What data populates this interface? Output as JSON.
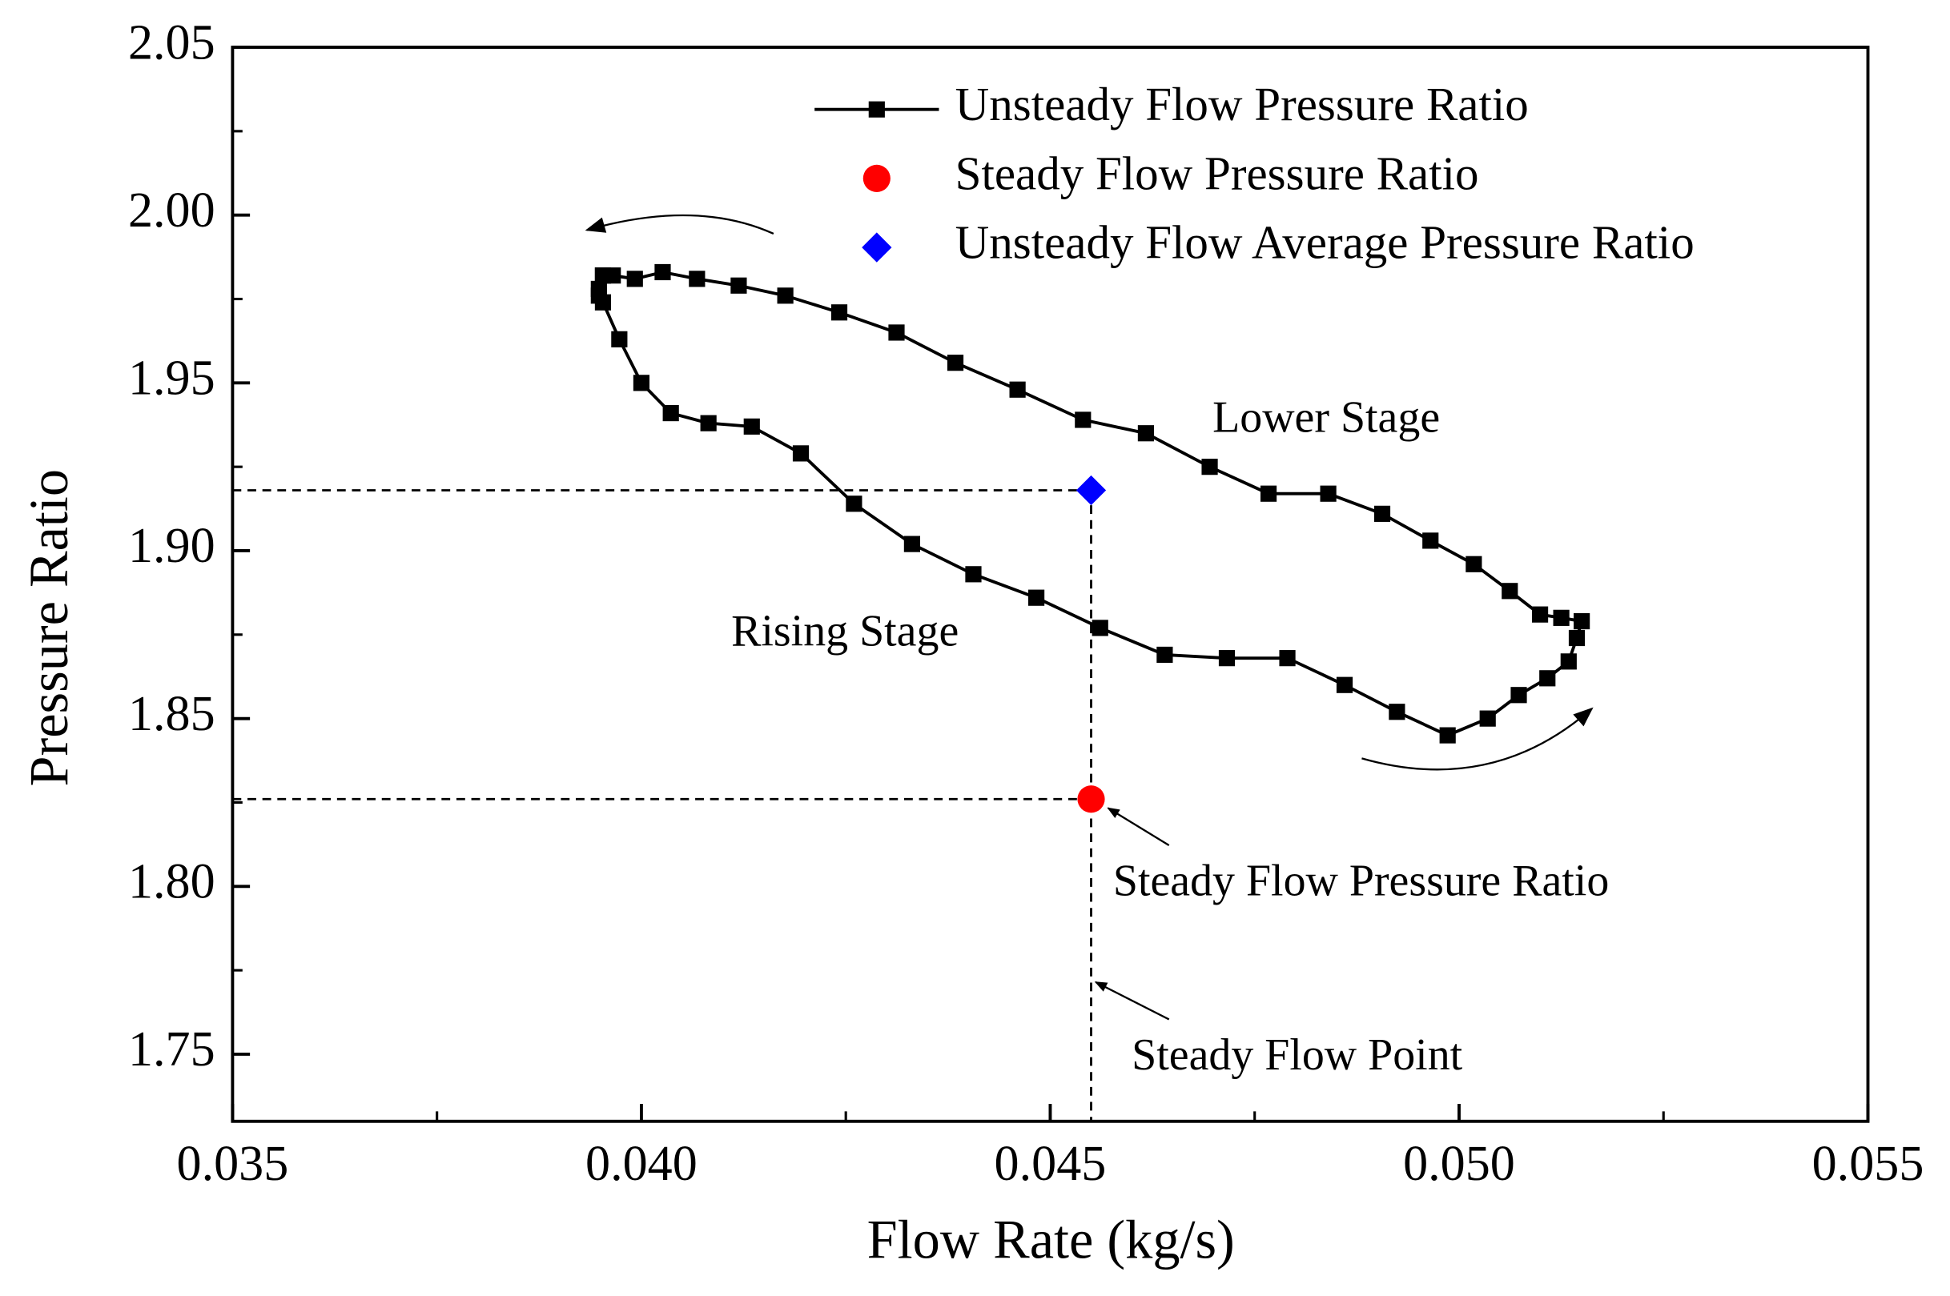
{
  "chart_data": {
    "type": "line",
    "xlabel": "Flow Rate (kg/s)",
    "ylabel": "Pressure Ratio",
    "xlim": [
      0.035,
      0.055
    ],
    "ylim": [
      1.73,
      2.05
    ],
    "xticks": [
      0.035,
      {
        "value": 0.04,
        "label": "0.040"
      },
      0.045,
      {
        "value": 0.05,
        "label": "0.050"
      },
      0.055
    ],
    "yticks": [
      1.75,
      {
        "value": 1.8,
        "label": "1.80"
      },
      1.85,
      {
        "value": 1.9,
        "label": "1.90"
      },
      1.95,
      {
        "value": 2.0,
        "label": "2.00"
      },
      2.05
    ],
    "xminorticks": [
      0.0375,
      0.0425,
      0.0475,
      0.0525
    ],
    "yminorticks": [
      1.775,
      1.825,
      1.875,
      1.925,
      1.975,
      2.025
    ],
    "series": [
      {
        "name": "Unsteady Flow Pressure Ratio",
        "color": "#000000",
        "marker": "square",
        "x": [
          0.03953,
          0.03965,
          0.03992,
          0.04026,
          0.04068,
          0.04119,
          0.04176,
          0.04242,
          0.04312,
          0.04384,
          0.0446,
          0.0454,
          0.04617,
          0.04695,
          0.04767,
          0.0484,
          0.04906,
          0.04965,
          0.05018,
          0.05062,
          0.05099,
          0.05125,
          0.0515,
          0.05144,
          0.05134,
          0.05108,
          0.05073,
          0.05035,
          0.04986,
          0.04924,
          0.0486,
          0.0479,
          0.04716,
          0.0464,
          0.04561,
          0.04483,
          0.04406,
          0.04331,
          0.0426,
          0.04195,
          0.04135,
          0.04082,
          0.04036,
          0.04,
          0.03973,
          0.03953,
          0.03948,
          0.03948,
          0.03953
        ],
        "values": [
          1.982,
          1.982,
          1.981,
          1.983,
          1.981,
          1.979,
          1.976,
          1.971,
          1.965,
          1.956,
          1.948,
          1.939,
          1.935,
          1.925,
          1.917,
          1.917,
          1.911,
          1.903,
          1.896,
          1.888,
          1.881,
          1.88,
          1.879,
          1.874,
          1.867,
          1.862,
          1.857,
          1.85,
          1.845,
          1.852,
          1.86,
          1.868,
          1.868,
          1.869,
          1.877,
          1.886,
          1.893,
          1.902,
          1.914,
          1.929,
          1.937,
          1.938,
          1.941,
          1.95,
          1.963,
          1.974,
          1.976,
          1.978,
          1.982
        ]
      },
      {
        "name": "Steady Flow Pressure Ratio",
        "color": "#ff0000",
        "marker": "circle",
        "x": [
          0.0455
        ],
        "values": [
          1.826
        ]
      },
      {
        "name": "Unsteady Flow Average Pressure Ratio",
        "color": "#0000ff",
        "marker": "diamond",
        "x": [
          0.0455
        ],
        "values": [
          1.918
        ]
      }
    ],
    "annotations": [
      "Lower Stage",
      "Rising Stage",
      "Steady Flow Pressure Ratio",
      "Steady Flow Point"
    ]
  }
}
